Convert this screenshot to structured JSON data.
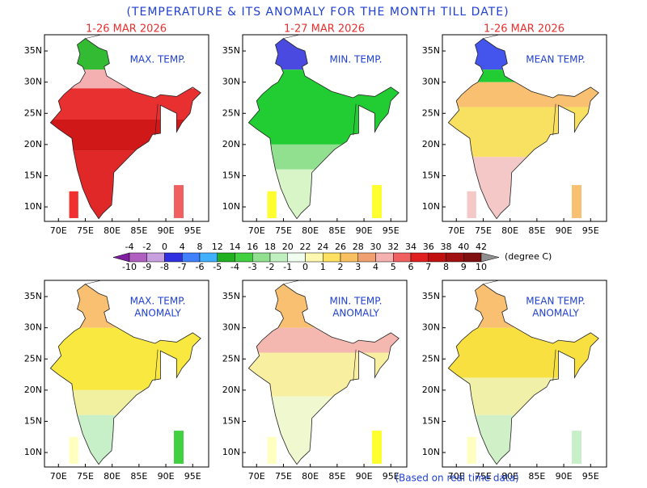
{
  "title": "(TEMPERATURE & ITS  ANOMALY FOR THE MONTH TILL DATE)",
  "footer": "(Based on real time data)",
  "panels": [
    {
      "date": "1-26 MAR 2026",
      "label": [
        "MAX. TEMP."
      ]
    },
    {
      "date": "1-27 MAR 2026",
      "label": [
        "MIN. TEMP."
      ]
    },
    {
      "date": "1-26 MAR 2026",
      "label": [
        "MEAN TEMP."
      ]
    },
    {
      "label": [
        "MAX. TEMP.",
        "ANOMALY"
      ]
    },
    {
      "label": [
        "MIN. TEMP.",
        "ANOMALY"
      ]
    },
    {
      "label": [
        "MEAN TEMP.",
        "ANOMALY"
      ]
    }
  ],
  "lat_ticks": [
    "35N",
    "30N",
    "25N",
    "20N",
    "15N",
    "10N"
  ],
  "lon_ticks": [
    "70E",
    "75E",
    "80E",
    "85E",
    "90E",
    "95E"
  ],
  "colorbar": {
    "upper_labels": [
      -4,
      -2,
      0,
      4,
      8,
      12,
      14,
      16,
      18,
      20,
      22,
      24,
      26,
      28,
      30,
      32,
      34,
      36,
      38,
      40,
      42
    ],
    "lower_labels": [
      -10,
      -9,
      -8,
      -7,
      -6,
      -5,
      -4,
      -3,
      -2,
      -1,
      0,
      1,
      2,
      3,
      4,
      5,
      6,
      7,
      8,
      9,
      10
    ],
    "unit": "(degree C)"
  }
}
